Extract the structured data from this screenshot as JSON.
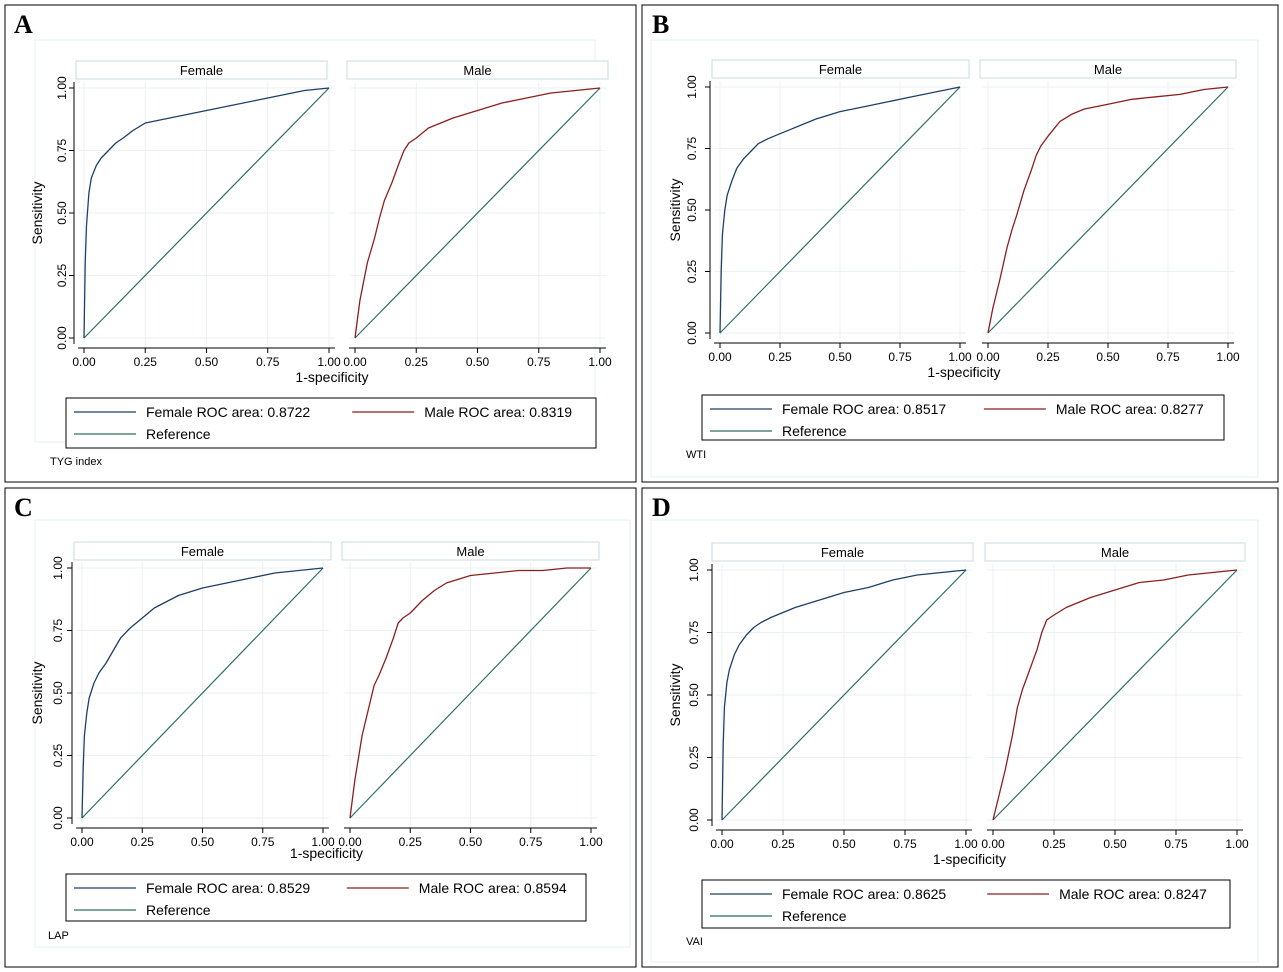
{
  "colors": {
    "female": "#1e3f66",
    "male": "#8b1f1f",
    "reference": "#2e6e66",
    "grid": "#eaf2f3",
    "strip_border": "#c9dde0"
  },
  "chart_data": [
    {
      "type": "line",
      "letter": "A",
      "ylabel": "Sensitivity",
      "xlabel": "1-specificity",
      "xlim": [
        0,
        1
      ],
      "ylim": [
        0,
        1
      ],
      "ticks": [
        "0.00",
        "0.25",
        "0.50",
        "0.75",
        "1.00"
      ],
      "note": "TYG index",
      "legend": {
        "female": "Female ROC area: 0.8722",
        "male": "Male ROC area: 0.8319",
        "reference": "Reference"
      },
      "panels": [
        {
          "title": "Female",
          "series": "female",
          "x": [
            0,
            0.005,
            0.01,
            0.02,
            0.03,
            0.05,
            0.07,
            0.1,
            0.13,
            0.16,
            0.2,
            0.25,
            0.3,
            0.4,
            0.5,
            0.6,
            0.7,
            0.8,
            0.9,
            1
          ],
          "y": [
            0,
            0.3,
            0.45,
            0.58,
            0.64,
            0.69,
            0.72,
            0.75,
            0.78,
            0.8,
            0.83,
            0.86,
            0.87,
            0.89,
            0.91,
            0.93,
            0.95,
            0.97,
            0.99,
            1
          ]
        },
        {
          "title": "Male",
          "series": "male",
          "x": [
            0,
            0.02,
            0.05,
            0.08,
            0.1,
            0.12,
            0.15,
            0.18,
            0.2,
            0.22,
            0.25,
            0.3,
            0.35,
            0.4,
            0.5,
            0.6,
            0.7,
            0.8,
            0.9,
            1
          ],
          "y": [
            0,
            0.15,
            0.3,
            0.4,
            0.48,
            0.55,
            0.62,
            0.7,
            0.75,
            0.78,
            0.8,
            0.84,
            0.86,
            0.88,
            0.91,
            0.94,
            0.96,
            0.98,
            0.99,
            1
          ]
        }
      ]
    },
    {
      "type": "line",
      "letter": "B",
      "ylabel": "Sensitivity",
      "xlabel": "1-specificity",
      "xlim": [
        0,
        1
      ],
      "ylim": [
        0,
        1
      ],
      "ticks": [
        "0.00",
        "0.25",
        "0.50",
        "0.75",
        "1.00"
      ],
      "note": "WTI",
      "legend": {
        "female": "Female ROC area: 0.8517",
        "male": "Male ROC area: 0.8277",
        "reference": "Reference"
      },
      "panels": [
        {
          "title": "Female",
          "series": "female",
          "x": [
            0,
            0.005,
            0.01,
            0.02,
            0.03,
            0.05,
            0.07,
            0.1,
            0.13,
            0.16,
            0.2,
            0.25,
            0.3,
            0.4,
            0.5,
            0.6,
            0.7,
            0.8,
            0.9,
            1
          ],
          "y": [
            0,
            0.25,
            0.4,
            0.5,
            0.56,
            0.62,
            0.67,
            0.71,
            0.74,
            0.77,
            0.79,
            0.81,
            0.83,
            0.87,
            0.9,
            0.92,
            0.94,
            0.96,
            0.98,
            1
          ]
        },
        {
          "title": "Male",
          "series": "male",
          "x": [
            0,
            0.02,
            0.05,
            0.08,
            0.1,
            0.12,
            0.15,
            0.18,
            0.2,
            0.22,
            0.25,
            0.3,
            0.35,
            0.4,
            0.5,
            0.6,
            0.7,
            0.8,
            0.9,
            1
          ],
          "y": [
            0,
            0.1,
            0.22,
            0.35,
            0.42,
            0.48,
            0.58,
            0.66,
            0.72,
            0.76,
            0.8,
            0.86,
            0.89,
            0.91,
            0.93,
            0.95,
            0.96,
            0.97,
            0.99,
            1
          ]
        }
      ]
    },
    {
      "type": "line",
      "letter": "C",
      "ylabel": "Sensitivity",
      "xlabel": "1-specificity",
      "xlim": [
        0,
        1
      ],
      "ylim": [
        0,
        1
      ],
      "ticks": [
        "0.00",
        "0.25",
        "0.50",
        "0.75",
        "1.00"
      ],
      "note": "LAP",
      "legend": {
        "female": "Female ROC area: 0.8529",
        "male": "Male ROC area: 0.8594",
        "reference": "Reference"
      },
      "panels": [
        {
          "title": "Female",
          "series": "female",
          "x": [
            0,
            0.005,
            0.01,
            0.02,
            0.03,
            0.05,
            0.07,
            0.1,
            0.13,
            0.16,
            0.2,
            0.25,
            0.3,
            0.4,
            0.5,
            0.6,
            0.7,
            0.8,
            0.9,
            1
          ],
          "y": [
            0,
            0.2,
            0.33,
            0.42,
            0.48,
            0.54,
            0.58,
            0.62,
            0.67,
            0.72,
            0.76,
            0.8,
            0.84,
            0.89,
            0.92,
            0.94,
            0.96,
            0.98,
            0.99,
            1
          ]
        },
        {
          "title": "Male",
          "series": "male",
          "x": [
            0,
            0.02,
            0.05,
            0.08,
            0.1,
            0.12,
            0.15,
            0.18,
            0.2,
            0.22,
            0.25,
            0.3,
            0.35,
            0.4,
            0.5,
            0.6,
            0.7,
            0.8,
            0.9,
            1
          ],
          "y": [
            0,
            0.15,
            0.33,
            0.45,
            0.53,
            0.57,
            0.64,
            0.72,
            0.78,
            0.8,
            0.82,
            0.87,
            0.91,
            0.94,
            0.97,
            0.98,
            0.99,
            0.99,
            1,
            1
          ]
        }
      ]
    },
    {
      "type": "line",
      "letter": "D",
      "ylabel": "Sensitivity",
      "xlabel": "1-specificity",
      "xlim": [
        0,
        1
      ],
      "ylim": [
        0,
        1
      ],
      "ticks": [
        "0.00",
        "0.25",
        "0.50",
        "0.75",
        "1.00"
      ],
      "note": "VAI",
      "legend": {
        "female": "Female ROC area: 0.8625",
        "male": "Male ROC area: 0.8247",
        "reference": "Reference"
      },
      "panels": [
        {
          "title": "Female",
          "series": "female",
          "x": [
            0,
            0.005,
            0.01,
            0.02,
            0.03,
            0.05,
            0.07,
            0.1,
            0.13,
            0.16,
            0.2,
            0.25,
            0.3,
            0.4,
            0.5,
            0.6,
            0.7,
            0.8,
            0.9,
            1
          ],
          "y": [
            0,
            0.3,
            0.45,
            0.55,
            0.6,
            0.66,
            0.7,
            0.74,
            0.77,
            0.79,
            0.81,
            0.83,
            0.85,
            0.88,
            0.91,
            0.93,
            0.96,
            0.98,
            0.99,
            1
          ]
        },
        {
          "title": "Male",
          "series": "male",
          "x": [
            0,
            0.02,
            0.05,
            0.08,
            0.1,
            0.12,
            0.15,
            0.18,
            0.2,
            0.22,
            0.25,
            0.3,
            0.35,
            0.4,
            0.5,
            0.6,
            0.7,
            0.8,
            0.9,
            1
          ],
          "y": [
            0,
            0.08,
            0.2,
            0.34,
            0.45,
            0.52,
            0.6,
            0.68,
            0.75,
            0.8,
            0.82,
            0.85,
            0.87,
            0.89,
            0.92,
            0.95,
            0.96,
            0.98,
            0.99,
            1
          ]
        }
      ]
    }
  ]
}
